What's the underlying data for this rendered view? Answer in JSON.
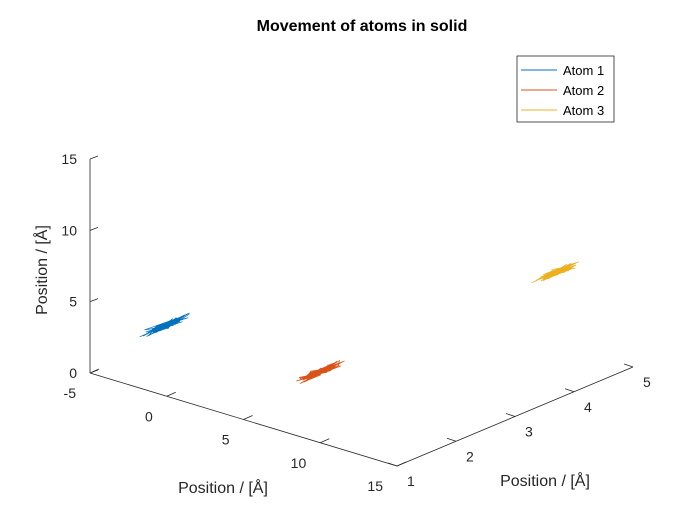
{
  "chart_data": {
    "type": "line3d",
    "title": "Movement of atoms in solid",
    "xlabel": "Position / [Å]",
    "ylabel": "Position / [Å]",
    "zlabel": "Position / [Å]",
    "xlim": [
      -5,
      15
    ],
    "ylim": [
      1,
      5
    ],
    "zlim": [
      0,
      15
    ],
    "xticks": [
      "-5",
      "0",
      "5",
      "10",
      "15"
    ],
    "yticks": [
      "1",
      "2",
      "3",
      "4",
      "5"
    ],
    "zticks": [
      "0",
      "5",
      "10",
      "15"
    ],
    "legend_position": "top-right",
    "grid": false,
    "series": [
      {
        "name": "Atom 1",
        "color": "#0072BD",
        "center": [
          0,
          1,
          5
        ]
      },
      {
        "name": "Atom 2",
        "color": "#D95319",
        "center": [
          10,
          1,
          5
        ]
      },
      {
        "name": "Atom 3",
        "color": "#EDB120",
        "center": [
          10,
          5,
          5
        ]
      }
    ]
  }
}
